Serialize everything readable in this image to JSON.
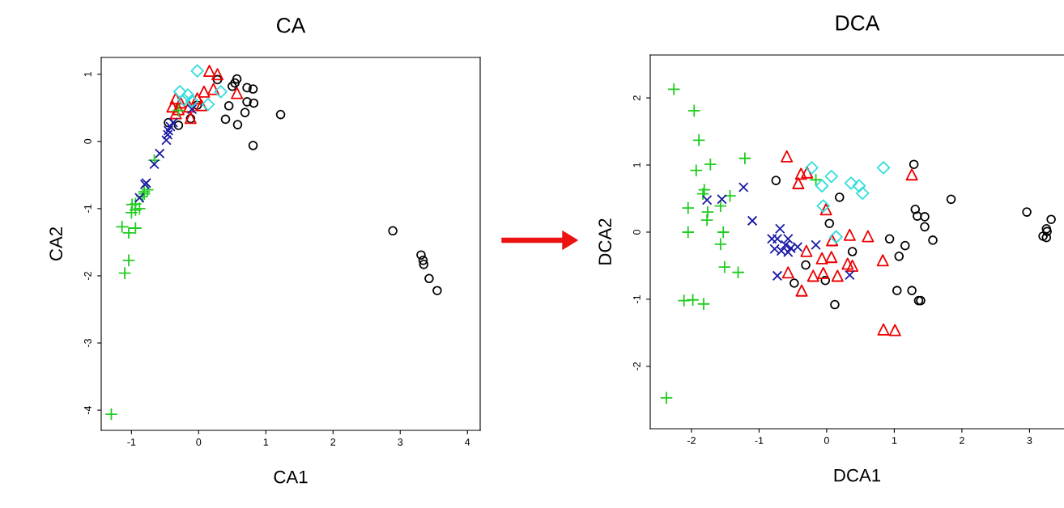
{
  "chart_data": [
    {
      "type": "scatter",
      "title": "CA",
      "xlabel": "CA1",
      "ylabel": "CA2",
      "xlim": [
        -1.45,
        4.19
      ],
      "ylim": [
        -4.3,
        1.25
      ],
      "xticks": [
        -1,
        0,
        1,
        2,
        3,
        4
      ],
      "yticks": [
        -4,
        -3,
        -2,
        -1,
        0,
        1
      ],
      "series": [
        {
          "color": "#000000",
          "marker": "circle",
          "x": [
            0.28,
            0.57,
            0.54,
            0.5,
            0.72,
            0.81,
            0.45,
            0.72,
            0.82,
            0.69,
            0.4,
            0.58,
            1.22,
            0.81,
            -0.3,
            -0.45,
            -0.12,
            -0.02,
            2.89,
            3.31,
            3.34,
            3.35,
            3.43,
            3.55
          ],
          "values": [
            0.92,
            0.93,
            0.87,
            0.82,
            0.8,
            0.78,
            0.53,
            0.59,
            0.57,
            0.43,
            0.33,
            0.25,
            0.4,
            -0.06,
            0.24,
            0.28,
            0.34,
            0.54,
            -1.33,
            -1.69,
            -1.77,
            -1.83,
            -2.04,
            -2.22
          ]
        },
        {
          "color": "#ee0000",
          "marker": "triangle",
          "x": [
            0.16,
            0.28,
            0.22,
            0.57,
            0.08,
            -0.34,
            -0.39,
            -0.3,
            -0.14,
            -0.12,
            -0.34,
            -0.02,
            0.04,
            -0.27
          ],
          "values": [
            1.05,
            1.0,
            0.78,
            0.72,
            0.74,
            0.64,
            0.52,
            0.48,
            0.52,
            0.35,
            0.42,
            0.64,
            0.54,
            0.58
          ]
        },
        {
          "color": "#22cc22",
          "marker": "plus",
          "x": [
            -0.66,
            -0.81,
            -0.94,
            -0.3,
            -0.76,
            -0.81,
            -0.84,
            -0.99,
            -0.88,
            -1.0,
            -0.94,
            -1.14,
            -0.94,
            -1.04,
            -1.04,
            -1.1,
            -1.3
          ],
          "values": [
            -0.28,
            -0.75,
            -0.93,
            0.46,
            -0.72,
            -0.78,
            -0.82,
            -0.94,
            -1.0,
            -1.06,
            -1.02,
            -1.27,
            -1.29,
            -1.36,
            -1.77,
            -1.96,
            -4.06
          ]
        },
        {
          "color": "#1a1aa6",
          "marker": "cross",
          "x": [
            -0.42,
            -0.45,
            -0.46,
            -0.48,
            -0.38,
            -0.58,
            -0.66,
            -0.78,
            -0.88,
            -0.1,
            -0.8
          ],
          "values": [
            0.22,
            0.16,
            0.1,
            0.02,
            0.28,
            -0.18,
            -0.34,
            -0.62,
            -0.84,
            0.48,
            -0.64
          ]
        },
        {
          "color": "#33dddd",
          "marker": "diamond",
          "x": [
            -0.02,
            -0.28,
            -0.16,
            0.33,
            0.14,
            -0.1,
            -0.22
          ],
          "values": [
            1.05,
            0.74,
            0.69,
            0.74,
            0.55,
            0.6,
            0.62
          ]
        }
      ]
    },
    {
      "type": "scatter",
      "title": "DCA",
      "xlabel": "DCA1",
      "ylabel": "DCA2",
      "xlim": [
        -2.61,
        3.51
      ],
      "ylim": [
        -2.93,
        2.64
      ],
      "xticks": [
        -2,
        -1,
        0,
        1,
        2,
        3
      ],
      "yticks": [
        -2,
        -1,
        0,
        1,
        2
      ],
      "series": [
        {
          "color": "#000000",
          "marker": "circle",
          "x": [
            -0.75,
            0.19,
            0.04,
            0.38,
            -0.31,
            -0.48,
            -0.02,
            0.12,
            1.29,
            1.84,
            1.31,
            1.34,
            1.45,
            1.45,
            0.93,
            1.16,
            1.57,
            1.07,
            1.04,
            1.26,
            1.39,
            1.36,
            2.96,
            3.32,
            3.25,
            3.26,
            3.2,
            3.25
          ],
          "values": [
            0.77,
            0.52,
            0.13,
            -0.29,
            -0.49,
            -0.76,
            -0.72,
            -1.08,
            1.01,
            0.49,
            0.34,
            0.24,
            0.23,
            0.08,
            -0.1,
            -0.2,
            -0.12,
            -0.36,
            -0.87,
            -0.87,
            -1.02,
            -1.02,
            0.3,
            0.19,
            0.05,
            0.01,
            -0.06,
            -0.08
          ]
        },
        {
          "color": "#ee0000",
          "marker": "triangle",
          "x": [
            -0.59,
            -0.38,
            -0.29,
            -0.42,
            -0.01,
            0.34,
            -0.3,
            0.08,
            0.61,
            -0.07,
            0.07,
            0.31,
            0.38,
            -0.57,
            -0.2,
            -0.05,
            0.16,
            -0.37,
            1.26,
            0.83,
            0.84,
            1.01
          ],
          "values": [
            1.13,
            0.87,
            0.89,
            0.73,
            0.34,
            -0.04,
            -0.28,
            -0.12,
            -0.06,
            -0.39,
            -0.37,
            -0.47,
            -0.5,
            -0.6,
            -0.65,
            -0.61,
            -0.65,
            -0.87,
            0.86,
            -0.42,
            -1.45,
            -1.46
          ]
        },
        {
          "color": "#22cc22",
          "marker": "plus",
          "x": [
            -2.26,
            -1.96,
            -1.89,
            -1.72,
            -1.93,
            -1.21,
            -1.81,
            -1.83,
            -1.43,
            -2.05,
            -1.57,
            -1.76,
            -1.77,
            -2.05,
            -1.53,
            -0.16,
            -1.57,
            -1.51,
            -1.31,
            -2.11,
            -1.98,
            -1.82,
            -2.37
          ],
          "values": [
            2.13,
            1.81,
            1.37,
            1.01,
            0.92,
            1.1,
            0.63,
            0.57,
            0.54,
            0.36,
            0.39,
            0.3,
            0.18,
            0.0,
            0.0,
            0.78,
            -0.18,
            -0.52,
            -0.6,
            -1.02,
            -1.01,
            -1.07,
            -2.47
          ]
        },
        {
          "color": "#1a1aa6",
          "marker": "cross",
          "x": [
            -1.23,
            -1.77,
            -1.55,
            -1.1,
            -0.69,
            -0.81,
            -0.73,
            -0.57,
            -0.61,
            -0.53,
            -0.77,
            -0.67,
            -0.43,
            -0.16,
            -0.57,
            -0.73,
            0.34
          ],
          "values": [
            0.67,
            0.48,
            0.49,
            0.17,
            0.05,
            -0.1,
            -0.1,
            -0.1,
            -0.19,
            -0.24,
            -0.25,
            -0.28,
            -0.22,
            -0.19,
            -0.3,
            -0.65,
            -0.64
          ]
        },
        {
          "color": "#33dddd",
          "marker": "diamond",
          "x": [
            -0.22,
            0.07,
            -0.07,
            0.36,
            -0.05,
            0.14,
            0.84,
            0.48,
            0.53
          ],
          "values": [
            0.96,
            0.83,
            0.69,
            0.73,
            0.39,
            -0.07,
            0.96,
            0.69,
            0.58
          ]
        }
      ]
    }
  ]
}
